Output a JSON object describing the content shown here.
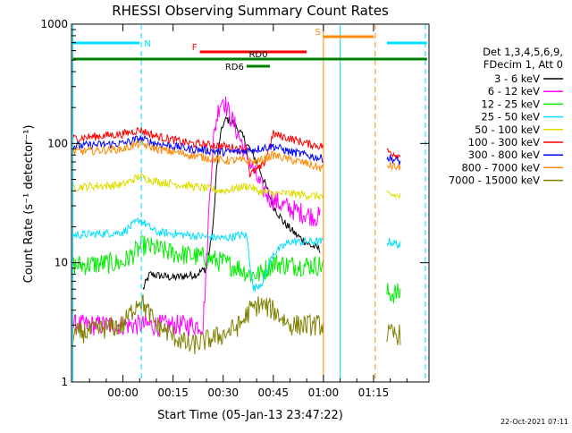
{
  "chart_data": {
    "type": "line",
    "title": "RHESSI Observing Summary Count Rates",
    "xlabel": "Start Time (05-Jan-13 23:47:22)",
    "ylabel": "Count Rate (s⁻¹ detector⁻¹)",
    "y_scale": "log",
    "ylim": [
      1,
      1000
    ],
    "xlim_minutes": [
      -15.4,
      91.6
    ],
    "x_tick_minutes": [
      0,
      15,
      30,
      45,
      60,
      75
    ],
    "x_tick_labels": [
      "00:00",
      "00:15",
      "00:30",
      "00:45",
      "01:00",
      "01:15"
    ],
    "y_ticks": [
      1,
      10,
      100,
      1000
    ],
    "y_tick_labels": [
      "1",
      "10",
      "100",
      "1000"
    ],
    "legend_header": [
      "Det 1,3,4,5,6,9,",
      "FDecim 1, Att 0"
    ],
    "legend_position": "right",
    "footer_timestamp": "22-Oct-2021 07:11",
    "grid": false,
    "series": [
      {
        "name": "3 - 6 keV",
        "color": "#000000",
        "points": [
          [
            6,
            6
          ],
          [
            8,
            8
          ],
          [
            15,
            7.5
          ],
          [
            22,
            8
          ],
          [
            25,
            9
          ],
          [
            27,
            20
          ],
          [
            28,
            60
          ],
          [
            29,
            110
          ],
          [
            30,
            145
          ],
          [
            31,
            160
          ],
          [
            33,
            150
          ],
          [
            35,
            125
          ],
          [
            37,
            100
          ],
          [
            39,
            80
          ],
          [
            41,
            60
          ],
          [
            43,
            42
          ],
          [
            45,
            30
          ],
          [
            48,
            22
          ],
          [
            52,
            17
          ],
          [
            56,
            14
          ],
          [
            59,
            13
          ]
        ]
      },
      {
        "name": "6 - 12 keV",
        "color": "#ff00ff",
        "points": [
          [
            -15,
            3
          ],
          [
            0,
            3
          ],
          [
            5,
            3
          ],
          [
            10,
            3
          ],
          [
            20,
            3
          ],
          [
            24,
            3
          ],
          [
            25,
            10
          ],
          [
            26,
            40
          ],
          [
            27,
            100
          ],
          [
            28,
            160
          ],
          [
            29,
            220
          ],
          [
            30,
            240
          ],
          [
            31,
            200
          ],
          [
            33,
            150
          ],
          [
            35,
            110
          ],
          [
            37,
            80
          ],
          [
            39,
            60
          ],
          [
            41,
            45
          ],
          [
            44,
            35
          ],
          [
            48,
            30
          ],
          [
            52,
            27
          ],
          [
            56,
            25
          ],
          [
            59,
            24
          ]
        ]
      },
      {
        "name": "12 - 25 keV",
        "color": "#00ee00",
        "points": [
          [
            -15,
            9.5
          ],
          [
            0,
            10
          ],
          [
            6,
            14
          ],
          [
            15,
            12
          ],
          [
            25,
            11
          ],
          [
            30,
            10
          ],
          [
            35,
            9
          ],
          [
            38,
            8
          ],
          [
            41,
            8
          ],
          [
            45,
            10
          ],
          [
            50,
            9.5
          ],
          [
            55,
            9.5
          ],
          [
            59,
            9.5
          ],
          [
            80,
            5.5
          ],
          [
            83,
            5.5
          ]
        ]
      },
      {
        "name": "25 - 50 keV",
        "color": "#00e0ff",
        "points": [
          [
            -15,
            17
          ],
          [
            0,
            18
          ],
          [
            5,
            23
          ],
          [
            10,
            18
          ],
          [
            20,
            17
          ],
          [
            30,
            16
          ],
          [
            35,
            17
          ],
          [
            37,
            17
          ],
          [
            39,
            6
          ],
          [
            42,
            7
          ],
          [
            45,
            12
          ],
          [
            50,
            15
          ],
          [
            55,
            15
          ],
          [
            59,
            15
          ],
          [
            80,
            15
          ],
          [
            83,
            14
          ]
        ]
      },
      {
        "name": "50 - 100 keV",
        "color": "#dddd00",
        "points": [
          [
            -15,
            43
          ],
          [
            0,
            45
          ],
          [
            5,
            53
          ],
          [
            10,
            48
          ],
          [
            20,
            44
          ],
          [
            30,
            40
          ],
          [
            35,
            43
          ],
          [
            38,
            44
          ],
          [
            40,
            40
          ],
          [
            45,
            38
          ],
          [
            50,
            38
          ],
          [
            59,
            36
          ],
          [
            80,
            37
          ],
          [
            83,
            36
          ]
        ]
      },
      {
        "name": "100 - 300 keV",
        "color": "#ff0000",
        "points": [
          [
            -15,
            110
          ],
          [
            0,
            120
          ],
          [
            5,
            130
          ],
          [
            10,
            115
          ],
          [
            20,
            100
          ],
          [
            30,
            95
          ],
          [
            35,
            90
          ],
          [
            37,
            90
          ],
          [
            38,
            55
          ],
          [
            40,
            60
          ],
          [
            42,
            65
          ],
          [
            45,
            120
          ],
          [
            50,
            110
          ],
          [
            55,
            100
          ],
          [
            59,
            95
          ],
          [
            80,
            85
          ],
          [
            83,
            78
          ]
        ]
      },
      {
        "name": "300 - 800 keV",
        "color": "#0000ff",
        "points": [
          [
            -15,
            95
          ],
          [
            0,
            100
          ],
          [
            5,
            110
          ],
          [
            10,
            100
          ],
          [
            20,
            90
          ],
          [
            30,
            85
          ],
          [
            35,
            85
          ],
          [
            40,
            90
          ],
          [
            45,
            95
          ],
          [
            50,
            85
          ],
          [
            55,
            80
          ],
          [
            59,
            75
          ],
          [
            80,
            75
          ],
          [
            83,
            70
          ]
        ]
      },
      {
        "name": "800 - 7000 keV",
        "color": "#ff8800",
        "points": [
          [
            -15,
            85
          ],
          [
            0,
            90
          ],
          [
            5,
            100
          ],
          [
            10,
            90
          ],
          [
            20,
            80
          ],
          [
            30,
            72
          ],
          [
            35,
            72
          ],
          [
            40,
            70
          ],
          [
            45,
            80
          ],
          [
            50,
            73
          ],
          [
            55,
            68
          ],
          [
            59,
            62
          ],
          [
            80,
            65
          ],
          [
            83,
            62
          ]
        ]
      },
      {
        "name": "7000 - 15000 keV",
        "color": "#808000",
        "points": [
          [
            -15,
            2.5
          ],
          [
            0,
            3
          ],
          [
            5,
            5
          ],
          [
            10,
            3
          ],
          [
            20,
            2
          ],
          [
            30,
            2.5
          ],
          [
            35,
            3
          ],
          [
            38,
            4
          ],
          [
            41,
            4.5
          ],
          [
            45,
            4
          ],
          [
            50,
            3
          ],
          [
            55,
            3
          ],
          [
            59,
            3
          ],
          [
            80,
            2.5
          ],
          [
            83,
            2.5
          ]
        ]
      }
    ],
    "flags": [
      {
        "label": "N",
        "color": "#00e0ff",
        "segments": [
          [
            -15,
            5
          ],
          [
            79,
            91
          ]
        ]
      },
      {
        "label": "F",
        "color": "#ff0000",
        "segments": [
          [
            23,
            55
          ]
        ]
      },
      {
        "label": "S",
        "color": "#ff8800",
        "segments": [
          [
            60,
            75
          ]
        ]
      },
      {
        "label": "RD0",
        "color": "#008000",
        "segments": [
          [
            -15,
            91
          ]
        ]
      },
      {
        "label": "RD6",
        "color": "#008000",
        "segments": [
          [
            37,
            44
          ]
        ]
      }
    ],
    "vlines": [
      {
        "x": -15,
        "color": "#00e0ff",
        "style": "solid"
      },
      {
        "x": 5.5,
        "color": "#00e0ff",
        "style": "dashed"
      },
      {
        "x": 60,
        "color": "#ff8800",
        "style": "solid"
      },
      {
        "x": 65,
        "color": "#00e0ff",
        "style": "solid"
      },
      {
        "x": 75.5,
        "color": "#ff8800",
        "style": "dashed"
      },
      {
        "x": 90.5,
        "color": "#00e0ff",
        "style": "dashed"
      }
    ],
    "gaps": [
      [
        60,
        79
      ]
    ]
  }
}
